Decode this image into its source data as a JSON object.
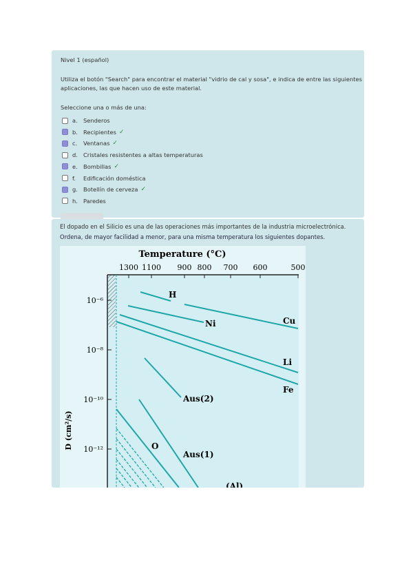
{
  "question1": {
    "title": "Nivel 1 (español)",
    "prompt": "Utiliza el botón \"Search\" para encontrar el material \"vidrio de cal y sosa\", e indica de entre las siguientes",
    "prompt_line2": "aplicaciones, las que hacen uso de este material.",
    "instruction": "Seleccione una o más de una:",
    "options": [
      {
        "letter": "a.",
        "label": "Senderos",
        "checked": false,
        "correct": false
      },
      {
        "letter": "b.",
        "label": "Recipientes",
        "checked": true,
        "correct": true
      },
      {
        "letter": "c.",
        "label": "Ventanas",
        "checked": true,
        "correct": true
      },
      {
        "letter": "d.",
        "label": "Cristales resistentes a altas temperaturas",
        "checked": false,
        "correct": false
      },
      {
        "letter": "e.",
        "label": "Bombillas",
        "checked": true,
        "correct": true
      },
      {
        "letter": "f.",
        "label": "Edificación doméstica",
        "checked": false,
        "correct": false
      },
      {
        "letter": "g.",
        "label": "Botellín de cerveza",
        "checked": true,
        "correct": true
      },
      {
        "letter": "h.",
        "label": "Paredes",
        "checked": false,
        "correct": false
      }
    ],
    "correct_mark": "✓"
  },
  "question2": {
    "line1": "El dopado en el Silicio es una de las operaciones más importantes de la industria microelectrónica.",
    "line2": "Ordena, de mayor facilidad a menor, para una misma temperatura los siguientes dopantes."
  },
  "chart_data": {
    "type": "line",
    "title": "Temperature (°C)",
    "ylabel": "D (cm²/s)",
    "x_ticks": [
      "1300",
      "1100",
      "900",
      "800",
      "700",
      "600",
      "500"
    ],
    "y_ticks": [
      "10⁻⁶",
      "10⁻⁸",
      "10⁻¹⁰",
      "10⁻¹²"
    ],
    "y_scale": "log",
    "series_labels": [
      "H",
      "Ni",
      "Cu",
      "Li",
      "Fe",
      "Aus(2)",
      "O",
      "Aus(1)",
      "(Al)"
    ],
    "colors": {
      "line": "#1fa6a8",
      "background": "#d6f0f3"
    }
  }
}
